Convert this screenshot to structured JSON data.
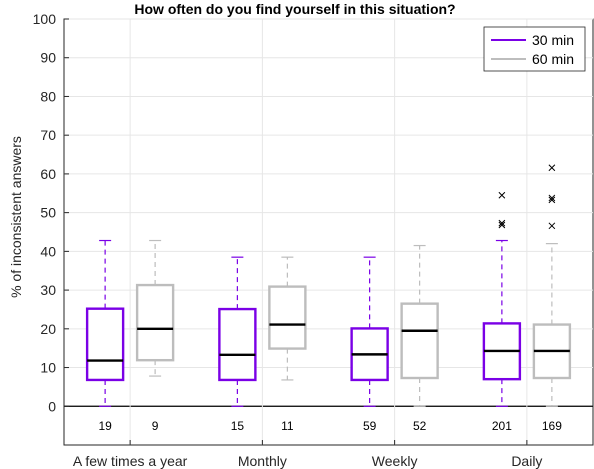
{
  "chart_data": {
    "type": "boxplot",
    "title": "How often do you find yourself in this situation?",
    "xlabel": "",
    "ylabel": "% of inconsistent answers",
    "ylim": [
      -10,
      100
    ],
    "yticks": [
      0,
      10,
      20,
      30,
      40,
      50,
      60,
      70,
      80,
      90,
      100
    ],
    "categories": [
      "A few times a year",
      "Monthly",
      "Weekly",
      "Daily"
    ],
    "grid": true,
    "legend": {
      "placement": "top-right"
    },
    "series": [
      {
        "name": "30 min",
        "color": "#7a00e6",
        "boxes": [
          {
            "whisker_low": 0,
            "q1": 6.8,
            "median": 11.8,
            "q3": 25.2,
            "whisker_high": 42.8,
            "n": "19",
            "outliers": []
          },
          {
            "whisker_low": 0,
            "q1": 6.8,
            "median": 13.3,
            "q3": 25.1,
            "whisker_high": 38.5,
            "n": "15",
            "outliers": []
          },
          {
            "whisker_low": 0,
            "q1": 6.8,
            "median": 13.4,
            "q3": 20.1,
            "whisker_high": 38.5,
            "n": "59",
            "outliers": []
          },
          {
            "whisker_low": 0,
            "q1": 7.0,
            "median": 14.3,
            "q3": 21.4,
            "whisker_high": 42.8,
            "n": "201",
            "outliers": [
              46.8,
              47.3,
              54.5
            ]
          }
        ]
      },
      {
        "name": "60 min",
        "color": "#bdbdbd",
        "boxes": [
          {
            "whisker_low": 7.8,
            "q1": 11.9,
            "median": 20.0,
            "q3": 31.3,
            "whisker_high": 42.8,
            "n": "9",
            "outliers": []
          },
          {
            "whisker_low": 6.8,
            "q1": 14.9,
            "median": 21.1,
            "q3": 30.9,
            "whisker_high": 38.5,
            "n": "11",
            "outliers": []
          },
          {
            "whisker_low": 0,
            "q1": 7.3,
            "median": 19.5,
            "q3": 26.5,
            "whisker_high": 41.5,
            "n": "52",
            "outliers": []
          },
          {
            "whisker_low": 0,
            "q1": 7.3,
            "median": 14.3,
            "q3": 21.1,
            "whisker_high": 42.0,
            "n": "169",
            "outliers": [
              46.6,
              53.3,
              53.8,
              61.6
            ]
          }
        ]
      }
    ]
  }
}
